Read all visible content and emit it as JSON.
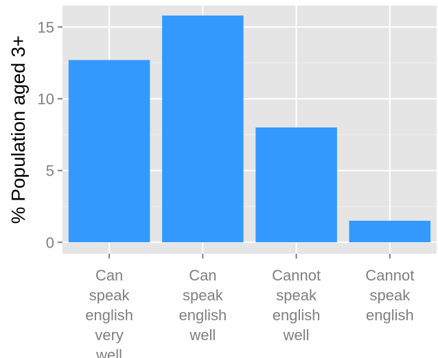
{
  "chart_data": {
    "type": "bar",
    "title": "",
    "xlabel": "",
    "ylabel": "% Population aged 3+",
    "categories": [
      "Can speak english very well",
      "Can speak english well",
      "Cannot speak english well",
      "Cannot speak english"
    ],
    "category_label_lines": [
      [
        "Can",
        "speak",
        "english",
        "very",
        "well"
      ],
      [
        "Can",
        "speak",
        "english",
        "well"
      ],
      [
        "Cannot",
        "speak",
        "english",
        "well"
      ],
      [
        "Cannot",
        "speak",
        "english"
      ]
    ],
    "values": [
      12.7,
      15.8,
      8.0,
      1.5
    ],
    "ylim": [
      -0.8,
      16.5
    ],
    "yticks": [
      0,
      5,
      10,
      15
    ],
    "grid": true,
    "legend": "none",
    "colors": {
      "bar": "#3399ff",
      "panel_background": "#e5e5e5",
      "grid_major": "#ffffff",
      "grid_minor": "#f2f2f2",
      "tick_label": "#7f7f7f",
      "tick_mark": "#7f7f7f",
      "axis_title": "#000000"
    }
  }
}
